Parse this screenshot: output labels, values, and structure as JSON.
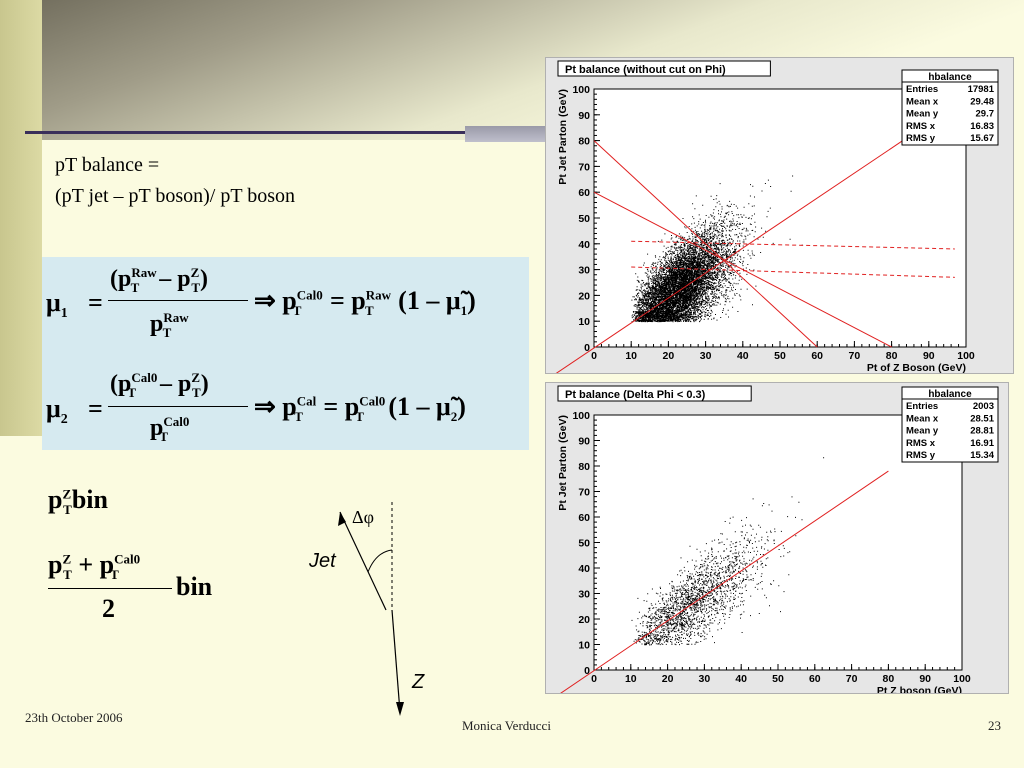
{
  "slide": {
    "title_line1": "pT balance =",
    "title_line2": "(pT jet – pT boson)/ pT boson",
    "footer_date": "23th October 2006",
    "footer_author": "Monica Verducci",
    "footer_page": "23"
  },
  "equations": {
    "eq1": {
      "lhs": "μ",
      "lhs_sub": "1",
      "num": "(p",
      "raw": "Raw",
      "minus_p": "– p",
      "z": "Z",
      "t": "T",
      "den_p": "p",
      "implies": "⇒",
      "cal0": "Cal0",
      "rhs_tail": "(1 – μ̃",
      "sub1": "1",
      "close": ")"
    },
    "eq2": {
      "lhs": "μ",
      "lhs_sub": "2",
      "cal0": "Cal0",
      "cal": "Cal",
      "z": "Z",
      "t": "T",
      "rhs_tail": "(1 – μ̃",
      "sub2": "2",
      "close": ")"
    },
    "bin1": {
      "p": "p",
      "z": "Z",
      "t": "T",
      "word": "bin"
    },
    "bin2": {
      "p": "p",
      "z": "Z",
      "t": "T",
      "plus": "+",
      "cal0": "Cal0",
      "word": "bin",
      "den": "2"
    }
  },
  "diagram": {
    "delta_phi": "Δφ",
    "jet_label": "Jet",
    "z_label": "Z"
  },
  "plots": [
    {
      "title": "Pt balance (without cut on Phi)",
      "ylabel": "Pt Jet Parton (GeV)",
      "xlabel": "Pt of Z Boson (GeV)",
      "ticks": [
        "0",
        "10",
        "20",
        "30",
        "40",
        "50",
        "60",
        "70",
        "80",
        "90",
        "100"
      ],
      "stats": {
        "name": "hbalance",
        "rows": [
          {
            "k": "Entries",
            "v": "17981"
          },
          {
            "k": "Mean x",
            "v": "29.48"
          },
          {
            "k": "Mean y",
            "v": "29.7"
          },
          {
            "k": "RMS x",
            "v": "16.83"
          },
          {
            "k": "RMS y",
            "v": "15.67"
          }
        ]
      }
    },
    {
      "title": "Pt balance (Delta Phi < 0.3)",
      "ylabel": "Pt Jet Parton (GeV)",
      "xlabel": "Pt Z boson (GeV)",
      "ticks": [
        "0",
        "10",
        "20",
        "30",
        "40",
        "50",
        "60",
        "70",
        "80",
        "90",
        "100"
      ],
      "stats": {
        "name": "hbalance",
        "rows": [
          {
            "k": "Entries",
            "v": "2003"
          },
          {
            "k": "Mean x",
            "v": "28.51"
          },
          {
            "k": "Mean y",
            "v": "28.81"
          },
          {
            "k": "RMS x",
            "v": "16.91"
          },
          {
            "k": "RMS y",
            "v": "15.34"
          }
        ]
      }
    }
  ]
}
